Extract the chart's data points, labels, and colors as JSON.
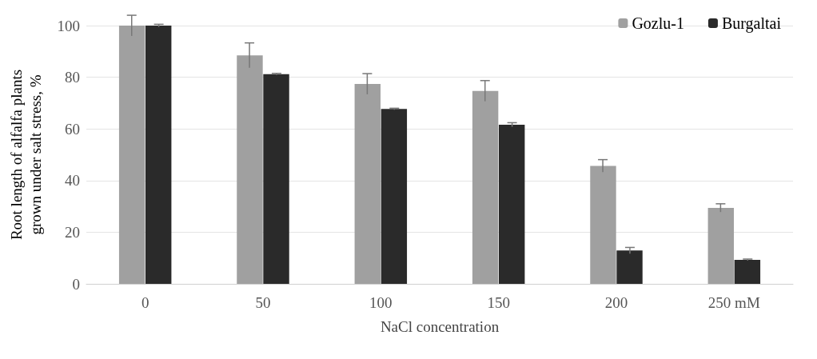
{
  "chart_data": {
    "type": "bar",
    "xlabel": "NaCl concentration",
    "ylabel": "Root length of alfalfa plants\ngrown under salt stress, %",
    "categories": [
      "0",
      "50",
      "100",
      "150",
      "200",
      "250 mM"
    ],
    "series": [
      {
        "name": "Gozlu-1",
        "color": "#a0a0a0",
        "values": [
          100,
          88.5,
          77.4,
          74.7,
          45.7,
          29.4
        ],
        "errors": [
          4,
          4.8,
          4,
          4,
          2.4,
          1.6
        ]
      },
      {
        "name": "Burgaltai",
        "color": "#2a2a2a",
        "values": [
          100,
          81.2,
          67.7,
          61.6,
          12.9,
          9.3
        ],
        "errors": [
          0.5,
          0.3,
          0.3,
          0.8,
          1.2,
          0.3
        ]
      }
    ],
    "ylim": [
      0,
      100
    ],
    "yticks": [
      0,
      20,
      40,
      60,
      80,
      100
    ],
    "grid": "y",
    "legend": "top right"
  }
}
